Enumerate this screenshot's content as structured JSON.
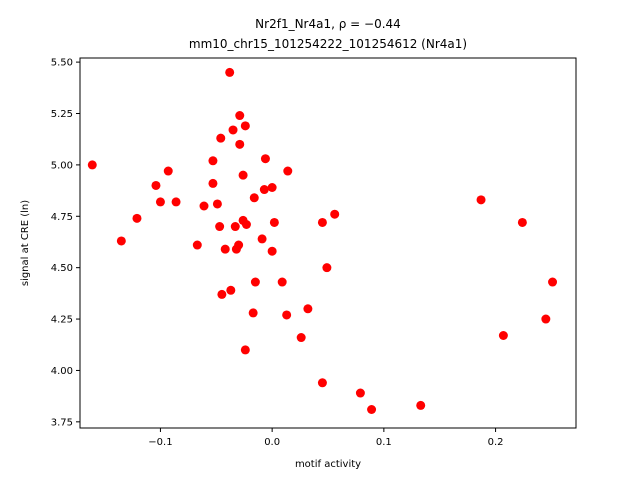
{
  "chart_data": {
    "type": "scatter",
    "title_line1": "Nr2f1_Nr4a1, ρ = −0.44",
    "title_line2": "mm10_chr15_101254222_101254612 (Nr4a1)",
    "xlabel": "motif activity",
    "ylabel": "signal at CRE (ln)",
    "xlim": [
      -0.172,
      0.272
    ],
    "ylim": [
      3.72,
      5.52
    ],
    "xticks": [
      -0.1,
      0.0,
      0.1,
      0.2
    ],
    "xtick_labels": [
      "−0.1",
      "0.0",
      "0.1",
      "0.2"
    ],
    "yticks": [
      3.75,
      4.0,
      4.25,
      4.5,
      4.75,
      5.0,
      5.25,
      5.5
    ],
    "ytick_labels": [
      "3.75",
      "4.00",
      "4.25",
      "4.50",
      "4.75",
      "5.00",
      "5.25",
      "5.50"
    ],
    "grid": false,
    "marker_color": "#ff0000",
    "points": [
      {
        "x": -0.161,
        "y": 5.0
      },
      {
        "x": -0.135,
        "y": 4.63
      },
      {
        "x": -0.121,
        "y": 4.74
      },
      {
        "x": -0.104,
        "y": 4.9
      },
      {
        "x": -0.1,
        "y": 4.82
      },
      {
        "x": -0.093,
        "y": 4.97
      },
      {
        "x": -0.086,
        "y": 4.82
      },
      {
        "x": -0.067,
        "y": 4.61
      },
      {
        "x": -0.061,
        "y": 4.8
      },
      {
        "x": -0.053,
        "y": 4.91
      },
      {
        "x": -0.053,
        "y": 5.02
      },
      {
        "x": -0.049,
        "y": 4.81
      },
      {
        "x": -0.047,
        "y": 4.7
      },
      {
        "x": -0.046,
        "y": 5.13
      },
      {
        "x": -0.045,
        "y": 4.37
      },
      {
        "x": -0.042,
        "y": 4.59
      },
      {
        "x": -0.038,
        "y": 5.45
      },
      {
        "x": -0.037,
        "y": 4.39
      },
      {
        "x": -0.035,
        "y": 5.17
      },
      {
        "x": -0.033,
        "y": 4.7
      },
      {
        "x": -0.032,
        "y": 4.59
      },
      {
        "x": -0.03,
        "y": 4.61
      },
      {
        "x": -0.029,
        "y": 5.24
      },
      {
        "x": -0.029,
        "y": 5.1
      },
      {
        "x": -0.026,
        "y": 4.95
      },
      {
        "x": -0.026,
        "y": 4.73
      },
      {
        "x": -0.024,
        "y": 5.19
      },
      {
        "x": -0.024,
        "y": 4.1
      },
      {
        "x": -0.023,
        "y": 4.71
      },
      {
        "x": -0.017,
        "y": 4.28
      },
      {
        "x": -0.016,
        "y": 4.84
      },
      {
        "x": -0.015,
        "y": 4.43
      },
      {
        "x": -0.009,
        "y": 4.64
      },
      {
        "x": -0.007,
        "y": 4.88
      },
      {
        "x": -0.006,
        "y": 5.03
      },
      {
        "x": 0.0,
        "y": 4.89
      },
      {
        "x": 0.0,
        "y": 4.58
      },
      {
        "x": 0.002,
        "y": 4.72
      },
      {
        "x": 0.009,
        "y": 4.43
      },
      {
        "x": 0.013,
        "y": 4.27
      },
      {
        "x": 0.014,
        "y": 4.97
      },
      {
        "x": 0.026,
        "y": 4.16
      },
      {
        "x": 0.032,
        "y": 4.3
      },
      {
        "x": 0.045,
        "y": 4.72
      },
      {
        "x": 0.045,
        "y": 3.94
      },
      {
        "x": 0.049,
        "y": 4.5
      },
      {
        "x": 0.056,
        "y": 4.76
      },
      {
        "x": 0.079,
        "y": 3.89
      },
      {
        "x": 0.089,
        "y": 3.81
      },
      {
        "x": 0.133,
        "y": 3.83
      },
      {
        "x": 0.187,
        "y": 4.83
      },
      {
        "x": 0.207,
        "y": 4.17
      },
      {
        "x": 0.224,
        "y": 4.72
      },
      {
        "x": 0.245,
        "y": 4.25
      },
      {
        "x": 0.251,
        "y": 4.43
      }
    ]
  }
}
